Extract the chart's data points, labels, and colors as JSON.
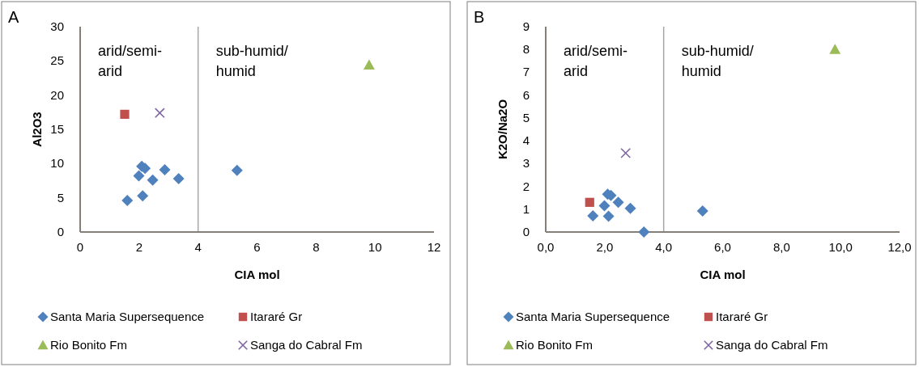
{
  "chart_data": [
    {
      "type": "scatter",
      "title": "A",
      "xlabel": "CIA mol",
      "ylabel": "Al2O3",
      "xlim": [
        0,
        12
      ],
      "xticks": [
        0,
        2,
        4,
        6,
        8,
        10,
        12
      ],
      "ylim": [
        0,
        30
      ],
      "yticks": [
        0,
        5,
        10,
        15,
        20,
        25,
        30
      ],
      "grid": false,
      "legend": "bottom",
      "ref_lines": [
        {
          "axis": "x",
          "value": 4,
          "color": "#a6a6a6"
        }
      ],
      "annotations": [
        "arid/semi-arid",
        "sub-humid/humid"
      ],
      "series": [
        {
          "name": "Santa Maria Supersequence",
          "color": "#4f81bd",
          "marker": "diamond",
          "x": [
            2.09,
            2.2,
            2.87,
            1.99,
            2.46,
            3.34,
            1.6,
            2.12,
            5.32
          ],
          "values": [
            9.6,
            9.3,
            9.1,
            8.2,
            7.6,
            7.8,
            4.6,
            5.3,
            9.0
          ]
        },
        {
          "name": "Itararé Gr",
          "color": "#c0504d",
          "marker": "square",
          "x": [
            1.51
          ],
          "values": [
            17.2
          ]
        },
        {
          "name": "Rio Bonito  Fm",
          "color": "#9bbb59",
          "marker": "triangle",
          "x": [
            9.8
          ],
          "values": [
            24.4
          ]
        },
        {
          "name": "Sanga do Cabral  Fm",
          "color": "#8064a2",
          "marker": "cross",
          "x": [
            2.7
          ],
          "values": [
            17.4
          ]
        }
      ]
    },
    {
      "type": "scatter",
      "title": "B",
      "xlabel": "CIA mol",
      "ylabel": "K2O/Na2O",
      "xlim": [
        0,
        12
      ],
      "xticks": [
        {
          "value": 0,
          "label": "0,0"
        },
        {
          "value": 2,
          "label": "2,0"
        },
        {
          "value": 4,
          "label": "4,0"
        },
        {
          "value": 6,
          "label": "6,0"
        },
        {
          "value": 8,
          "label": "8,0"
        },
        {
          "value": 10,
          "label": "10,0"
        },
        {
          "value": 12,
          "label": "12,0"
        }
      ],
      "ylim": [
        0,
        9
      ],
      "yticks": [
        0,
        1,
        2,
        3,
        4,
        5,
        6,
        7,
        8,
        9
      ],
      "grid": false,
      "legend": "bottom",
      "ref_lines": [
        {
          "axis": "x",
          "value": 4,
          "color": "#a6a6a6"
        }
      ],
      "annotations": [
        "arid/semi-arid",
        "sub-humid/humid"
      ],
      "series": [
        {
          "name": "Santa Maria Supersequence",
          "color": "#4f81bd",
          "marker": "diamond",
          "x": [
            2.1,
            2.21,
            1.99,
            2.46,
            2.87,
            1.6,
            2.13,
            3.33,
            5.32
          ],
          "values": [
            1.66,
            1.6,
            1.15,
            1.3,
            1.04,
            0.71,
            0.69,
            0,
            0.92
          ]
        },
        {
          "name": "Itararé Gr",
          "color": "#c0504d",
          "marker": "square",
          "x": [
            1.49
          ],
          "values": [
            1.3
          ]
        },
        {
          "name": "Rio Bonito  Fm",
          "color": "#9bbb59",
          "marker": "triangle",
          "x": [
            9.81
          ],
          "values": [
            8.0
          ]
        },
        {
          "name": "Sanga do Cabral  Fm",
          "color": "#8064a2",
          "marker": "cross",
          "x": [
            2.71
          ],
          "values": [
            3.46
          ]
        }
      ]
    }
  ]
}
